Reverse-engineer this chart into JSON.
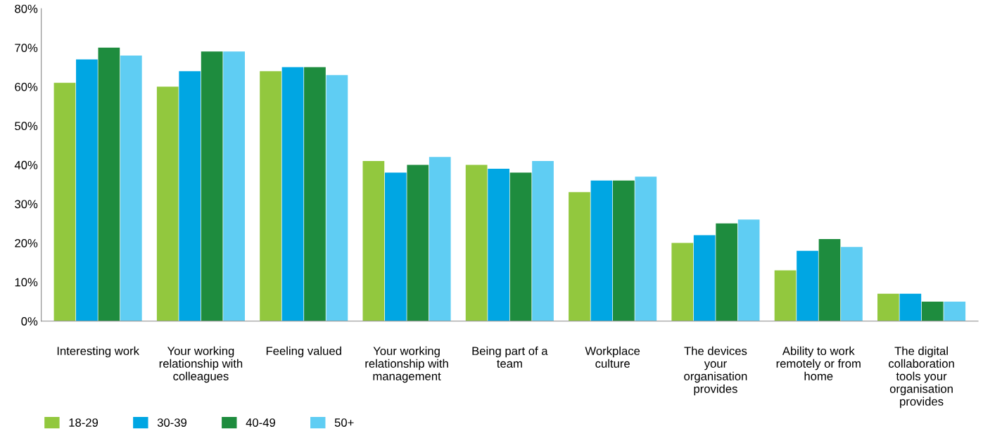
{
  "chart_data": {
    "type": "bar",
    "categories": [
      "Interesting work",
      "Your working\nrelationship with\ncolleagues",
      "Feeling valued",
      "Your working\nrelationship with\nmanagement",
      "Being part of a\nteam",
      "Workplace\nculture",
      "The devices\nyour\norganisation\nprovides",
      "Ability to work\nremotely or from\nhome",
      "The digital\ncollaboration\ntools your\norganisation\nprovides"
    ],
    "series": [
      {
        "name": "18-29",
        "color": "#92c83e",
        "values": [
          61,
          60,
          64,
          41,
          40,
          33,
          20,
          13,
          7
        ]
      },
      {
        "name": "30-39",
        "color": "#00a6e3",
        "values": [
          67,
          64,
          65,
          38,
          39,
          36,
          22,
          18,
          7
        ]
      },
      {
        "name": "40-49",
        "color": "#1e8c3e",
        "values": [
          70,
          69,
          65,
          40,
          38,
          36,
          25,
          21,
          5
        ]
      },
      {
        "name": "50+",
        "color": "#5fcdf3",
        "values": [
          68,
          69,
          63,
          42,
          41,
          37,
          26,
          19,
          5
        ]
      }
    ],
    "ylim": [
      0,
      80
    ],
    "yticks": [
      {
        "value": 0,
        "label": "0%"
      },
      {
        "value": 10,
        "label": "10%"
      },
      {
        "value": 20,
        "label": "20%"
      },
      {
        "value": 30,
        "label": "30%"
      },
      {
        "value": 40,
        "label": "40%"
      },
      {
        "value": 50,
        "label": "50%"
      },
      {
        "value": 60,
        "label": "60%"
      },
      {
        "value": 70,
        "label": "70%"
      },
      {
        "value": 80,
        "label": "80%"
      }
    ],
    "grid": false,
    "legend": "bottom left"
  }
}
